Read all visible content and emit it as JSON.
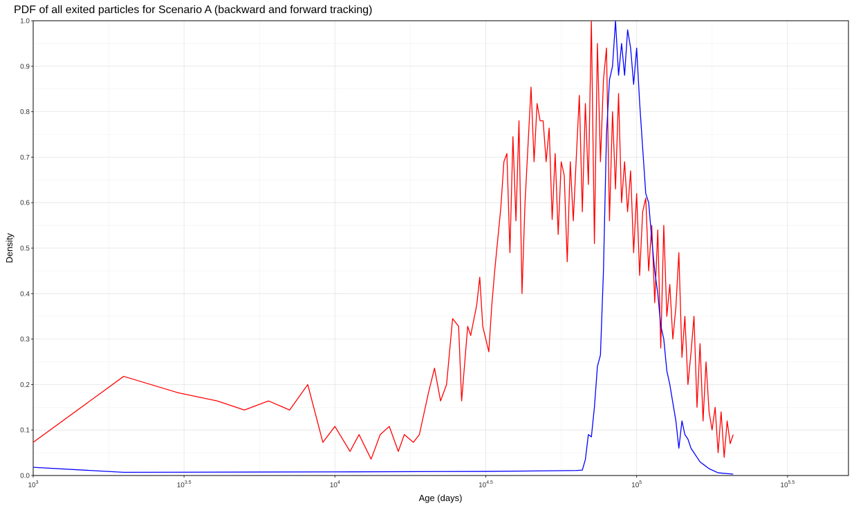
{
  "chart_data": {
    "type": "line",
    "title": "PDF of all exited particles for Scenario A (backward and forward tracking)",
    "x_label": "Age (days)",
    "y_label": "Density",
    "x_scale": "log",
    "grid": true,
    "xlim": [
      1000,
      503500
    ],
    "ylim": [
      0,
      1
    ],
    "xticks": [
      {
        "value": 1000,
        "label": "10",
        "sup": "3"
      },
      {
        "value": 3162,
        "label": "10",
        "sup": "3.5"
      },
      {
        "value": 10000,
        "label": "10",
        "sup": "4"
      },
      {
        "value": 31623,
        "label": "10",
        "sup": "4.5"
      },
      {
        "value": 100000,
        "label": "10",
        "sup": "5"
      },
      {
        "value": 316228,
        "label": "10",
        "sup": "5.5"
      }
    ],
    "yticks": [
      {
        "value": 0,
        "label": "0.0"
      },
      0.1,
      0.2,
      0.3,
      0.4,
      0.5,
      0.6,
      0.7,
      0.8,
      0.9,
      {
        "value": 1,
        "label": "1.0"
      }
    ],
    "series": [
      {
        "color": "#ff0000",
        "x": [
          1000,
          1995,
          3020,
          4074,
          5012,
          6026,
          7079,
          8128,
          9120,
          10000,
          11220,
          12020,
          13180,
          14130,
          15140,
          16220,
          16980,
          18200,
          19050,
          20420,
          21380,
          22390,
          23440,
          24550,
          25700,
          26300,
          27540,
          28180,
          29510,
          30200,
          30900,
          32360,
          33110,
          33880,
          35480,
          36310,
          37150,
          38020,
          38900,
          39810,
          40740,
          41690,
          42660,
          44670,
          45710,
          46770,
          47860,
          48980,
          50120,
          51290,
          52480,
          53700,
          54950,
          56230,
          57540,
          58880,
          60260,
          61660,
          63100,
          64570,
          66070,
          67610,
          69180,
          70790,
          72440,
          74130,
          75860,
          77620,
          79430,
          81280,
          83180,
          85110,
          87100,
          89130,
          91200,
          93330,
          95500,
          97720,
          100000,
          102300,
          104700,
          107200,
          109600,
          112200,
          114800,
          117500,
          120200,
          123000,
          125900,
          128800,
          131800,
          134900,
          138000,
          141300,
          144500,
          147900,
          151400,
          154900,
          158500,
          162200,
          166000,
          169800,
          173800,
          177800,
          182000,
          186200,
          190500,
          195000,
          199500,
          204200,
          208900
        ],
        "values": [
          0.073,
          0.218,
          0.182,
          0.164,
          0.144,
          0.164,
          0.144,
          0.2,
          0.073,
          0.108,
          0.053,
          0.09,
          0.036,
          0.09,
          0.108,
          0.053,
          0.09,
          0.073,
          0.09,
          0.182,
          0.236,
          0.164,
          0.2,
          0.345,
          0.328,
          0.164,
          0.328,
          0.308,
          0.375,
          0.436,
          0.328,
          0.272,
          0.375,
          0.453,
          0.59,
          0.69,
          0.708,
          0.49,
          0.745,
          0.56,
          0.78,
          0.4,
          0.6,
          0.854,
          0.69,
          0.818,
          0.78,
          0.78,
          0.69,
          0.764,
          0.563,
          0.708,
          0.53,
          0.69,
          0.66,
          0.47,
          0.69,
          0.56,
          0.7,
          0.836,
          0.58,
          0.818,
          0.64,
          1.0,
          0.51,
          0.95,
          0.69,
          0.87,
          0.94,
          0.56,
          0.8,
          0.63,
          0.84,
          0.6,
          0.69,
          0.58,
          0.67,
          0.49,
          0.62,
          0.44,
          0.58,
          0.61,
          0.45,
          0.55,
          0.38,
          0.54,
          0.28,
          0.55,
          0.35,
          0.42,
          0.3,
          0.37,
          0.49,
          0.26,
          0.35,
          0.2,
          0.27,
          0.35,
          0.15,
          0.29,
          0.12,
          0.25,
          0.14,
          0.1,
          0.15,
          0.05,
          0.14,
          0.04,
          0.12,
          0.07,
          0.09
        ]
      },
      {
        "color": "#0000ff",
        "x": [
          1000,
          1995,
          10000,
          31620,
          63100,
          66070,
          67610,
          69180,
          70790,
          72440,
          74130,
          75860,
          77620,
          79430,
          81280,
          83180,
          85110,
          87100,
          89130,
          91200,
          93330,
          95500,
          97720,
          100000,
          102300,
          104700,
          107200,
          109600,
          112200,
          114800,
          117500,
          120200,
          123000,
          125900,
          128800,
          131800,
          134900,
          138000,
          141300,
          144500,
          147900,
          151400,
          154900,
          158500,
          162200,
          166000,
          173800,
          186200,
          208900
        ],
        "values": [
          0.018,
          0.007,
          0.008,
          0.009,
          0.011,
          0.012,
          0.035,
          0.09,
          0.085,
          0.15,
          0.24,
          0.265,
          0.45,
          0.75,
          0.87,
          0.9,
          1.0,
          0.88,
          0.95,
          0.88,
          0.98,
          0.94,
          0.86,
          0.94,
          0.82,
          0.72,
          0.62,
          0.6,
          0.52,
          0.45,
          0.4,
          0.33,
          0.3,
          0.23,
          0.2,
          0.16,
          0.12,
          0.06,
          0.12,
          0.09,
          0.08,
          0.06,
          0.05,
          0.04,
          0.03,
          0.025,
          0.015,
          0.006,
          0.003
        ]
      }
    ]
  }
}
